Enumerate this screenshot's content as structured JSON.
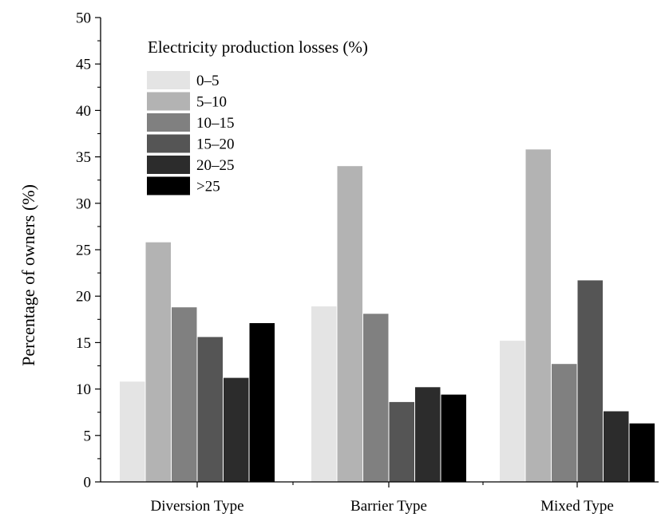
{
  "chart_data": {
    "type": "bar",
    "categories": [
      "Diversion Type",
      "Barrier Type",
      "Mixed Type"
    ],
    "legend_title": "Electricity production losses (%)",
    "legend_position": "top-left",
    "series": [
      {
        "name": "0–5",
        "color": "#e4e4e4",
        "values": [
          10.8,
          18.9,
          15.2
        ]
      },
      {
        "name": "5–10",
        "color": "#b3b3b3",
        "values": [
          25.8,
          34.0,
          35.8
        ]
      },
      {
        "name": "10–15",
        "color": "#808080",
        "values": [
          18.8,
          18.1,
          12.7
        ]
      },
      {
        "name": "15–20",
        "color": "#555555",
        "values": [
          15.6,
          8.6,
          21.7
        ]
      },
      {
        "name": "20–25",
        "color": "#2c2c2c",
        "values": [
          11.2,
          10.2,
          7.6
        ]
      },
      {
        "name": ">25",
        "color": "#000000",
        "values": [
          17.1,
          9.4,
          6.3
        ]
      }
    ],
    "ylabel": "Percentage of owners (%)",
    "xlabel": "",
    "ylim": [
      0,
      50
    ],
    "yticks": [
      "0",
      "5",
      "10",
      "15",
      "20",
      "25",
      "30",
      "35",
      "40",
      "45",
      "50"
    ],
    "grid": false
  }
}
